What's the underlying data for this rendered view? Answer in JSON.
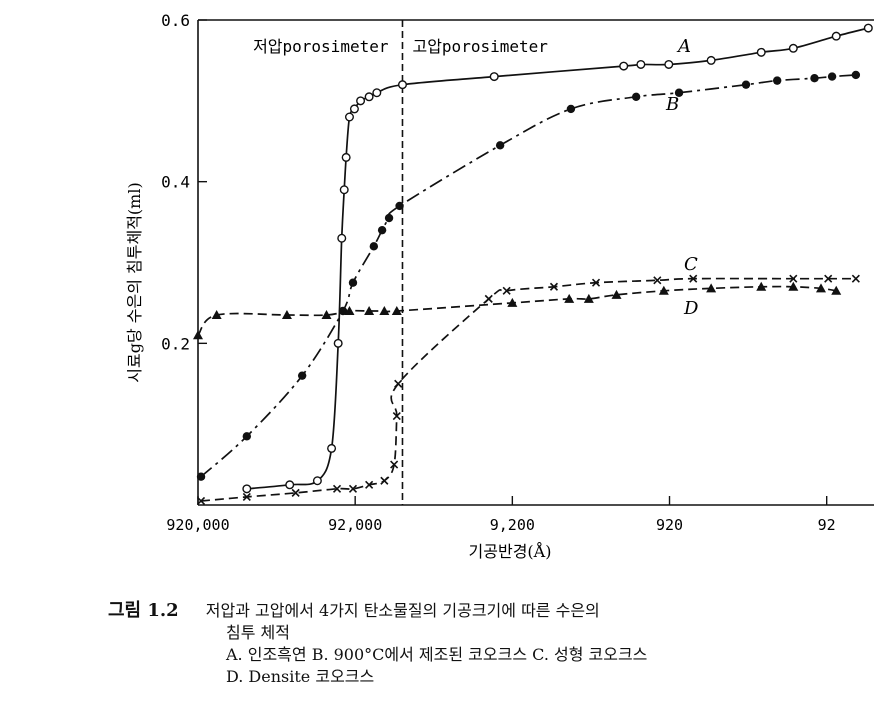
{
  "chart_data": {
    "type": "line",
    "xscale": "log",
    "x_reversed": true,
    "xlim": [
      920000,
      46
    ],
    "ylim": [
      0,
      0.6
    ],
    "x_ticks": [
      920000,
      92000,
      9200,
      920,
      92
    ],
    "x_tick_labels": [
      "920,000",
      "92,000",
      "9,200",
      "920",
      "92"
    ],
    "y_ticks": [
      0.2,
      0.4,
      0.6
    ],
    "y_tick_labels": [
      "0.2",
      "0.4",
      "0.6"
    ],
    "xlabel": "기공반경(Å)",
    "ylabel": "시료g당 수은의 침투체적(ml)",
    "grid": false,
    "region_divider_x": 46000,
    "region_labels": [
      "저압porosimeter",
      "고압porosimeter"
    ],
    "series": [
      {
        "name": "A",
        "marker": "open-circle",
        "line_style": "solid",
        "points": [
          [
            450000,
            0.02
          ],
          [
            240000,
            0.025
          ],
          [
            160000,
            0.03
          ],
          [
            130000,
            0.07
          ],
          [
            118000,
            0.2
          ],
          [
            112000,
            0.33
          ],
          [
            108000,
            0.39
          ],
          [
            105000,
            0.43
          ],
          [
            100000,
            0.48
          ],
          [
            93000,
            0.49
          ],
          [
            85000,
            0.5
          ],
          [
            75000,
            0.505
          ],
          [
            67000,
            0.51
          ],
          [
            46000,
            0.52
          ],
          [
            12000,
            0.53
          ],
          [
            1800,
            0.543
          ],
          [
            1400,
            0.545
          ],
          [
            930,
            0.545
          ],
          [
            500,
            0.55
          ],
          [
            240,
            0.56
          ],
          [
            150,
            0.565
          ],
          [
            80,
            0.58
          ],
          [
            50,
            0.59
          ]
        ]
      },
      {
        "name": "B",
        "marker": "filled-circle",
        "line_style": "dash-dot",
        "points": [
          [
            880000,
            0.035
          ],
          [
            450000,
            0.085
          ],
          [
            200000,
            0.16
          ],
          [
            110000,
            0.24
          ],
          [
            95000,
            0.275
          ],
          [
            70000,
            0.32
          ],
          [
            62000,
            0.34
          ],
          [
            56000,
            0.355
          ],
          [
            48000,
            0.37
          ],
          [
            11000,
            0.445
          ],
          [
            3900,
            0.49
          ],
          [
            1500,
            0.505
          ],
          [
            800,
            0.51
          ],
          [
            300,
            0.52
          ],
          [
            190,
            0.525
          ],
          [
            110,
            0.528
          ],
          [
            85,
            0.53
          ],
          [
            60,
            0.532
          ]
        ]
      },
      {
        "name": "C",
        "marker": "cross",
        "line_style": "dash",
        "points": [
          [
            880000,
            0.005
          ],
          [
            450000,
            0.01
          ],
          [
            220000,
            0.015
          ],
          [
            120000,
            0.02
          ],
          [
            95000,
            0.02
          ],
          [
            75000,
            0.025
          ],
          [
            60000,
            0.03
          ],
          [
            52000,
            0.05
          ],
          [
            50000,
            0.11
          ],
          [
            49000,
            0.15
          ],
          [
            13000,
            0.255
          ],
          [
            10000,
            0.265
          ],
          [
            5000,
            0.27
          ],
          [
            2700,
            0.275
          ],
          [
            1100,
            0.278
          ],
          [
            650,
            0.28
          ],
          [
            150,
            0.28
          ],
          [
            90,
            0.28
          ],
          [
            60,
            0.28
          ]
        ]
      },
      {
        "name": "D",
        "marker": "filled-triangle",
        "line_style": "dash",
        "points": [
          [
            920000,
            0.21
          ],
          [
            700000,
            0.235
          ],
          [
            250000,
            0.235
          ],
          [
            140000,
            0.235
          ],
          [
            100000,
            0.24
          ],
          [
            75000,
            0.24
          ],
          [
            60000,
            0.24
          ],
          [
            50000,
            0.24
          ],
          [
            9200,
            0.25
          ],
          [
            4000,
            0.255
          ],
          [
            3000,
            0.255
          ],
          [
            2000,
            0.26
          ],
          [
            1000,
            0.265
          ],
          [
            500,
            0.268
          ],
          [
            240,
            0.27
          ],
          [
            150,
            0.27
          ],
          [
            100,
            0.268
          ],
          [
            80,
            0.265
          ]
        ]
      }
    ]
  },
  "caption": {
    "label": "그림 1.2",
    "title_line1": "저압과 고압에서 4가지 탄소물질의 기공크기에 따른 수은의",
    "title_line2": "침투 체적",
    "legend_line1": "A. 인조흑연 B. 900°C에서 제조된 코오크스 C. 성형 코오크스",
    "legend_line2": "D. Densite 코오크스"
  }
}
